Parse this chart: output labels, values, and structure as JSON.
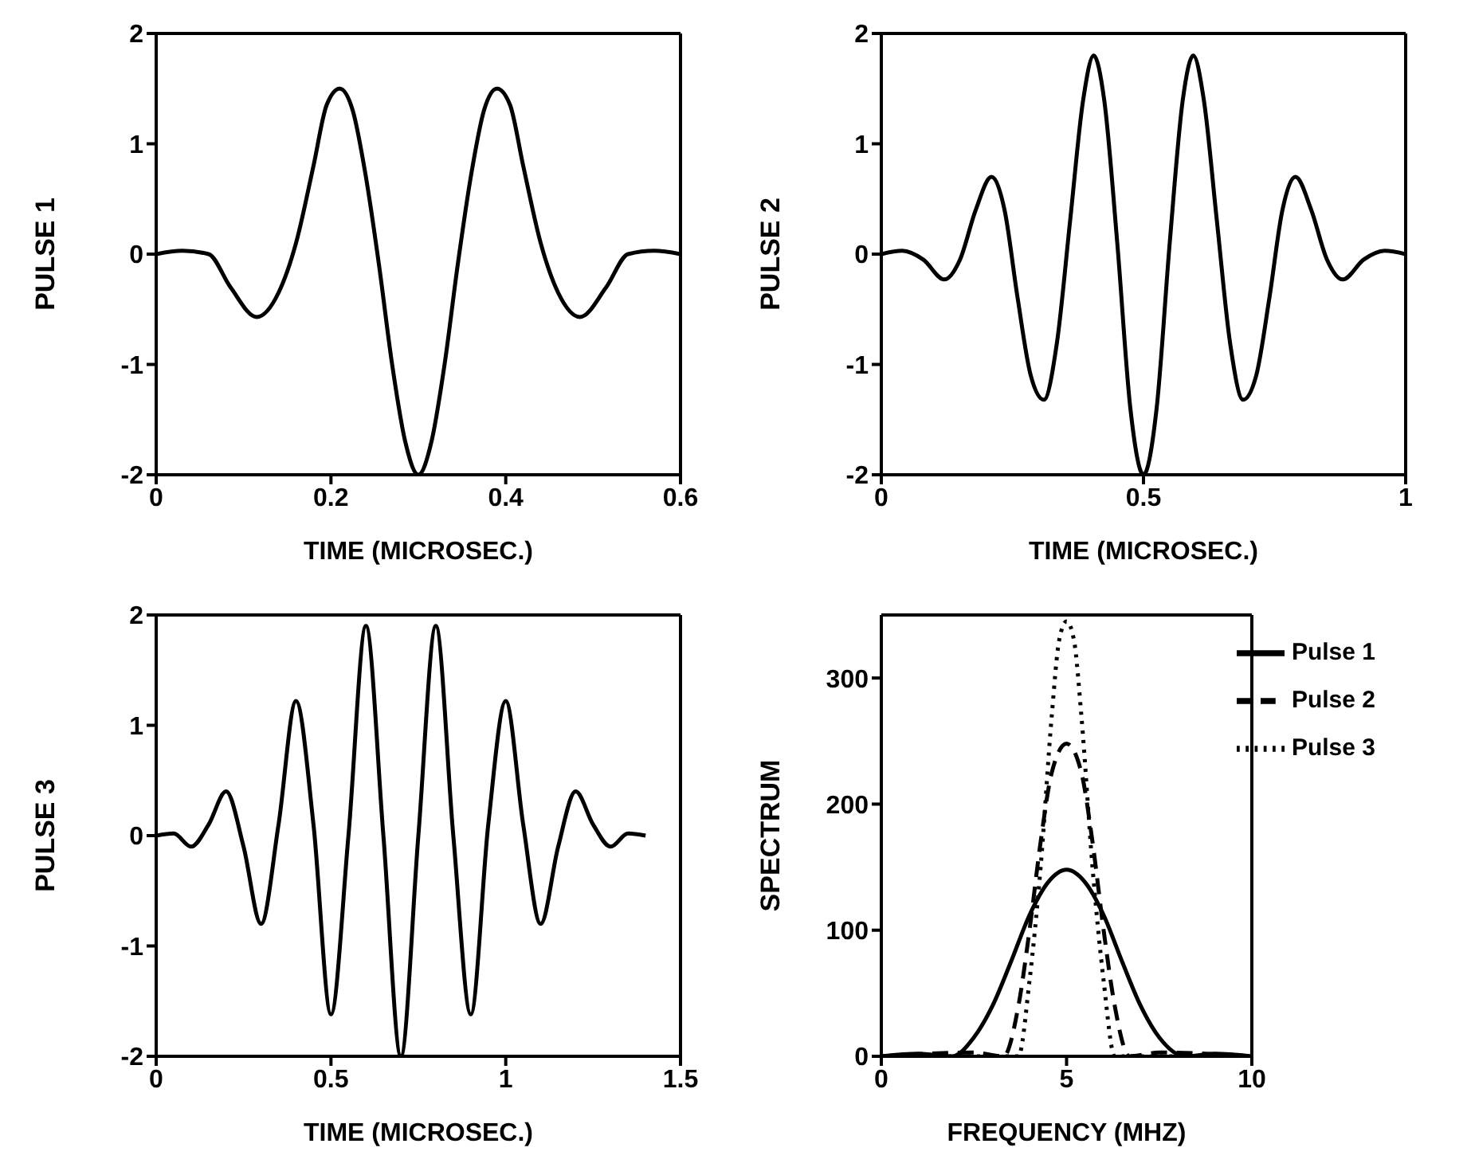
{
  "chart_data": [
    {
      "type": "line",
      "ylabel": "PULSE 1",
      "xlabel": "TIME (MICROSEC.)",
      "color": "#000000",
      "xlim": [
        0,
        0.6
      ],
      "xticks": [
        0,
        0.2,
        0.4,
        0.6
      ],
      "ylim": [
        -2,
        2
      ],
      "yticks": [
        -2,
        -1,
        0,
        1,
        2
      ],
      "x": [
        0,
        0.03,
        0.06,
        0.085,
        0.115,
        0.14,
        0.16,
        0.18,
        0.195,
        0.21,
        0.225,
        0.24,
        0.255,
        0.27,
        0.285,
        0.3,
        0.315,
        0.33,
        0.345,
        0.36,
        0.375,
        0.39,
        0.405,
        0.42,
        0.44,
        0.46,
        0.485,
        0.515,
        0.54,
        0.57,
        0.6
      ],
      "values": [
        0,
        0.03,
        0,
        -0.3,
        -0.57,
        -0.35,
        0.1,
        0.8,
        1.35,
        1.5,
        1.3,
        0.7,
        -0.1,
        -1.0,
        -1.7,
        -2,
        -1.7,
        -1.0,
        -0.1,
        0.7,
        1.3,
        1.5,
        1.35,
        0.8,
        0.1,
        -0.35,
        -0.57,
        -0.3,
        0,
        0.03,
        0
      ]
    },
    {
      "type": "line",
      "ylabel": "PULSE 2",
      "xlabel": "TIME (MICROSEC.)",
      "color": "#000000",
      "xlim": [
        0,
        1
      ],
      "xticks": [
        0,
        0.5,
        1
      ],
      "ylim": [
        -2,
        2
      ],
      "yticks": [
        -2,
        -1,
        0,
        1,
        2
      ],
      "x": [
        0,
        0.04,
        0.08,
        0.12,
        0.15,
        0.18,
        0.21,
        0.235,
        0.26,
        0.285,
        0.31,
        0.335,
        0.36,
        0.385,
        0.405,
        0.425,
        0.45,
        0.475,
        0.5,
        0.525,
        0.55,
        0.575,
        0.595,
        0.615,
        0.64,
        0.665,
        0.69,
        0.715,
        0.74,
        0.765,
        0.79,
        0.82,
        0.85,
        0.88,
        0.92,
        0.96,
        1
      ],
      "values": [
        0,
        0.03,
        -0.05,
        -0.23,
        -0.05,
        0.4,
        0.7,
        0.4,
        -0.4,
        -1.1,
        -1.32,
        -0.8,
        0.3,
        1.4,
        1.8,
        1.4,
        0.1,
        -1.4,
        -2,
        -1.4,
        0.1,
        1.4,
        1.8,
        1.4,
        0.3,
        -0.8,
        -1.32,
        -1.1,
        -0.4,
        0.4,
        0.7,
        0.4,
        -0.05,
        -0.23,
        -0.05,
        0.03,
        0
      ]
    },
    {
      "type": "line",
      "ylabel": "PULSE 3",
      "xlabel": "TIME (MICROSEC.)",
      "color": "#000000",
      "xlim": [
        0,
        1.5
      ],
      "xticks": [
        0,
        0.5,
        1,
        1.5
      ],
      "ylim": [
        -2,
        2
      ],
      "yticks": [
        -2,
        -1,
        0,
        1,
        2
      ],
      "x": [
        0,
        0.05,
        0.1,
        0.15,
        0.2,
        0.25,
        0.3,
        0.35,
        0.4,
        0.45,
        0.5,
        0.55,
        0.6,
        0.65,
        0.7,
        0.75,
        0.8,
        0.85,
        0.9,
        0.95,
        1,
        1.05,
        1.1,
        1.15,
        1.2,
        1.25,
        1.3,
        1.35,
        1.4
      ],
      "values": [
        0,
        0.02,
        -0.1,
        0.1,
        0.4,
        -0.1,
        -0.8,
        0.1,
        1.22,
        0.1,
        -1.62,
        0,
        1.9,
        0,
        -2,
        0,
        1.9,
        0,
        -1.62,
        0.1,
        1.22,
        0.1,
        -0.8,
        -0.1,
        0.4,
        0.1,
        -0.1,
        0.02,
        0
      ]
    },
    {
      "type": "line",
      "ylabel": "SPECTRUM",
      "xlabel": "FREQUENCY (MHZ)",
      "xlim": [
        0,
        10
      ],
      "xticks": [
        0,
        5,
        10
      ],
      "ylim": [
        0,
        350
      ],
      "yticks": [
        0,
        100,
        200,
        300
      ],
      "legend": "top right",
      "series": [
        {
          "name": "Pulse 1",
          "color": "#000000",
          "line_style": "solid",
          "x": [
            0,
            1,
            1.9,
            2.5,
            3,
            3.5,
            4,
            4.5,
            5,
            5.5,
            6,
            6.5,
            7,
            7.5,
            8.2,
            9,
            10
          ],
          "values": [
            0,
            2,
            0,
            15,
            40,
            75,
            112,
            138,
            148,
            138,
            112,
            75,
            40,
            15,
            0,
            2,
            0
          ]
        },
        {
          "name": "Pulse 2",
          "color": "#000000",
          "line_style": "dashed",
          "x": [
            0,
            2.5,
            3.3,
            3.7,
            4,
            4.3,
            4.6,
            5,
            5.4,
            5.7,
            6,
            6.3,
            6.7,
            7.5,
            10
          ],
          "values": [
            0,
            3,
            0,
            40,
            100,
            170,
            225,
            248,
            225,
            170,
            100,
            40,
            0,
            3,
            0
          ]
        },
        {
          "name": "Pulse 3",
          "color": "#000000",
          "line_style": "dotted",
          "x": [
            0,
            3.7,
            4,
            4.3,
            4.6,
            4.8,
            5,
            5.2,
            5.4,
            5.7,
            6,
            6.3,
            10
          ],
          "values": [
            0,
            0,
            60,
            150,
            270,
            330,
            345,
            330,
            270,
            150,
            60,
            0,
            0
          ]
        }
      ]
    }
  ]
}
